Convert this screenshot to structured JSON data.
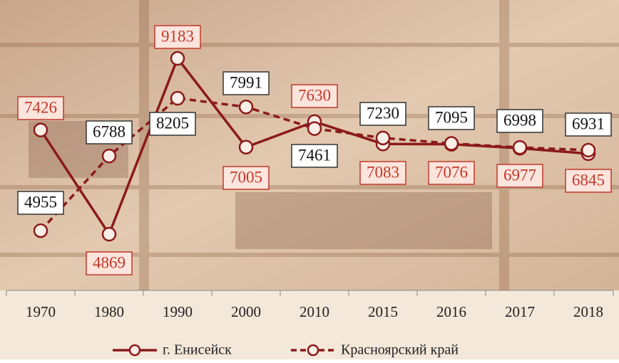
{
  "chart_data": {
    "type": "line",
    "categories": [
      "1970",
      "1980",
      "1990",
      "2000",
      "2010",
      "2015",
      "2016",
      "2017",
      "2018"
    ],
    "series": [
      {
        "name": "г. Енисейск",
        "color": "#8b1a1a",
        "values": [
          7426,
          4869,
          9183,
          7005,
          7630,
          7083,
          7076,
          6977,
          6845
        ]
      },
      {
        "name": "Красноярский край",
        "color": "#8b1a1a",
        "values": [
          4955,
          6788,
          8205,
          7991,
          7461,
          7230,
          7095,
          6998,
          6931
        ]
      }
    ]
  }
}
